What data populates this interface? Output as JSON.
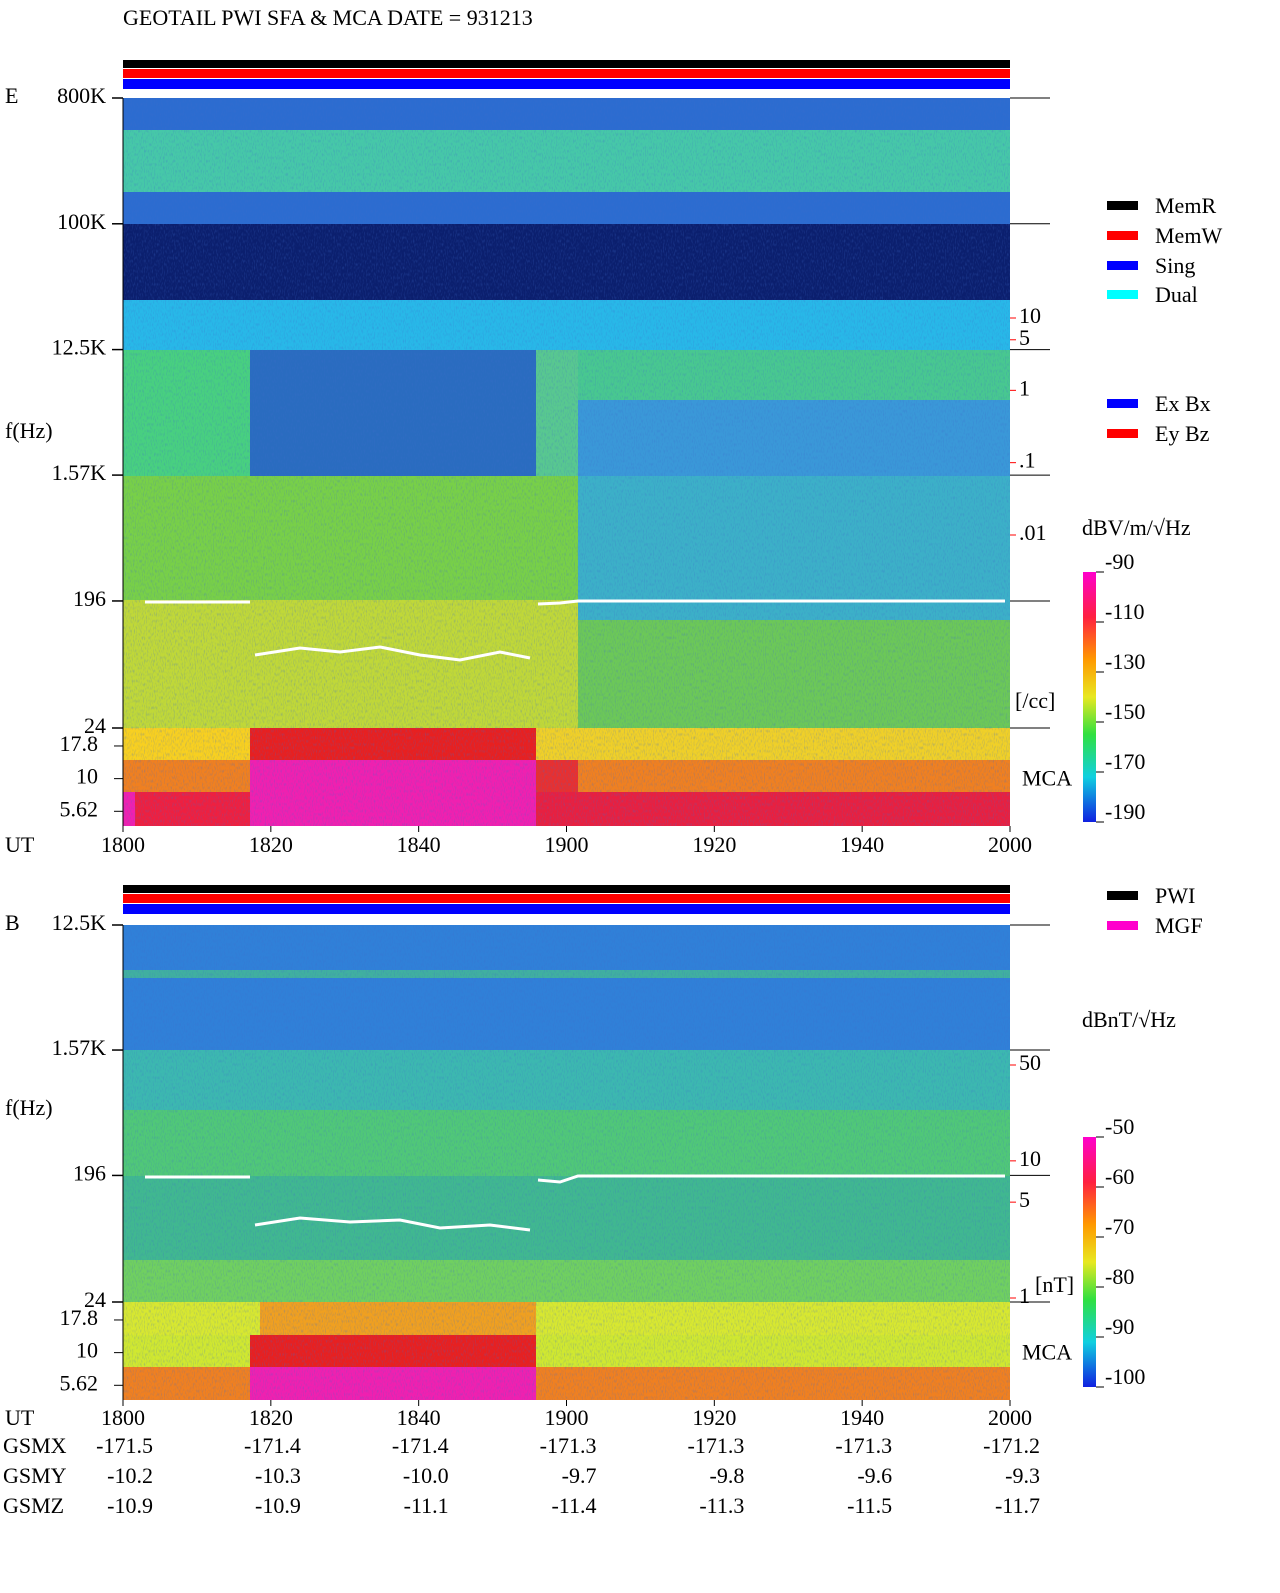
{
  "title": "GEOTAIL  PWI SFA & MCA   DATE = 931213",
  "chart_data": [
    {
      "type": "spectrogram",
      "panel_label": "E",
      "y_label": "f(Hz)",
      "x_label": "UT",
      "categories": [
        "1800",
        "1820",
        "1840",
        "1900",
        "1920",
        "1940",
        "2000"
      ],
      "log_scale": true,
      "ylim": [
        24,
        800000
      ],
      "yticks": [
        {
          "value": 800000,
          "label": "800K"
        },
        {
          "value": 100000,
          "label": "100K"
        },
        {
          "value": 12500,
          "label": "12.5K"
        },
        {
          "value": 1570,
          "label": "1.57K"
        },
        196,
        24
      ],
      "mca_ticks": [
        17.8,
        10,
        5.62
      ],
      "mca_label": "MCA",
      "legend": [
        {
          "name": "MemR",
          "color": "#000000"
        },
        {
          "name": "MemW",
          "color": "#ff0000"
        },
        {
          "name": "Sing",
          "color": "#0000ff"
        },
        {
          "name": "Dual",
          "color": "#00ffff"
        }
      ],
      "legend2": [
        {
          "name": "Ex Bx",
          "color": "#0000ff"
        },
        {
          "name": "Ey Bz",
          "color": "#ff0000"
        }
      ],
      "density_axis": {
        "label": "[/cc]",
        "color": "#ff0000",
        "lim": [
          0.01,
          10
        ],
        "ticks": [
          10,
          5,
          1,
          {
            "value": 0.1,
            "label": ".1"
          },
          {
            "value": 0.01,
            "label": ".01"
          }
        ]
      },
      "colorbar": {
        "label": "dBV/m/√Hz",
        "lim": [
          -190,
          -90
        ],
        "ticks": [
          -90,
          -110,
          -130,
          -150,
          -170,
          -190
        ]
      }
    },
    {
      "type": "spectrogram",
      "panel_label": "B",
      "y_label": "f(Hz)",
      "x_label": "UT",
      "categories": [
        "1800",
        "1820",
        "1840",
        "1900",
        "1920",
        "1940",
        "2000"
      ],
      "log_scale": true,
      "ylim": [
        24,
        12500
      ],
      "yticks": [
        {
          "value": 12500,
          "label": "12.5K"
        },
        {
          "value": 1570,
          "label": "1.57K"
        },
        196,
        24
      ],
      "mca_ticks": [
        17.8,
        10,
        5.62
      ],
      "mca_label": "MCA",
      "legend": [
        {
          "name": "PWI",
          "color": "#000000"
        },
        {
          "name": "MGF",
          "color": "#ff00cc"
        }
      ],
      "density_axis": {
        "label": "[nT]",
        "color": "#ff0000",
        "lim": [
          1,
          50
        ],
        "ticks": [
          50,
          10,
          5,
          1
        ]
      },
      "colorbar": {
        "label": "dBnT/√Hz",
        "lim": [
          -100,
          -50
        ],
        "ticks": [
          -50,
          -60,
          -70,
          -80,
          -90,
          -100
        ]
      }
    }
  ],
  "orbit": {
    "rows": [
      {
        "name": "GSMX",
        "values": [
          -171.5,
          -171.4,
          -171.4,
          -171.3,
          -171.3,
          -171.3,
          -171.2
        ]
      },
      {
        "name": "GSMY",
        "values": [
          -10.2,
          -10.3,
          -10,
          -9.7,
          -9.8,
          -9.6,
          -9.3
        ],
        "value_labels": [
          "-10.2",
          "-10.3",
          "-10.0",
          "-9.7",
          "-9.8",
          "-9.6",
          "-9.3"
        ]
      },
      {
        "name": "GSMZ",
        "values": [
          -10.9,
          -10.9,
          -11.1,
          -11.4,
          -11.3,
          -11.5,
          -11.7
        ]
      }
    ]
  }
}
